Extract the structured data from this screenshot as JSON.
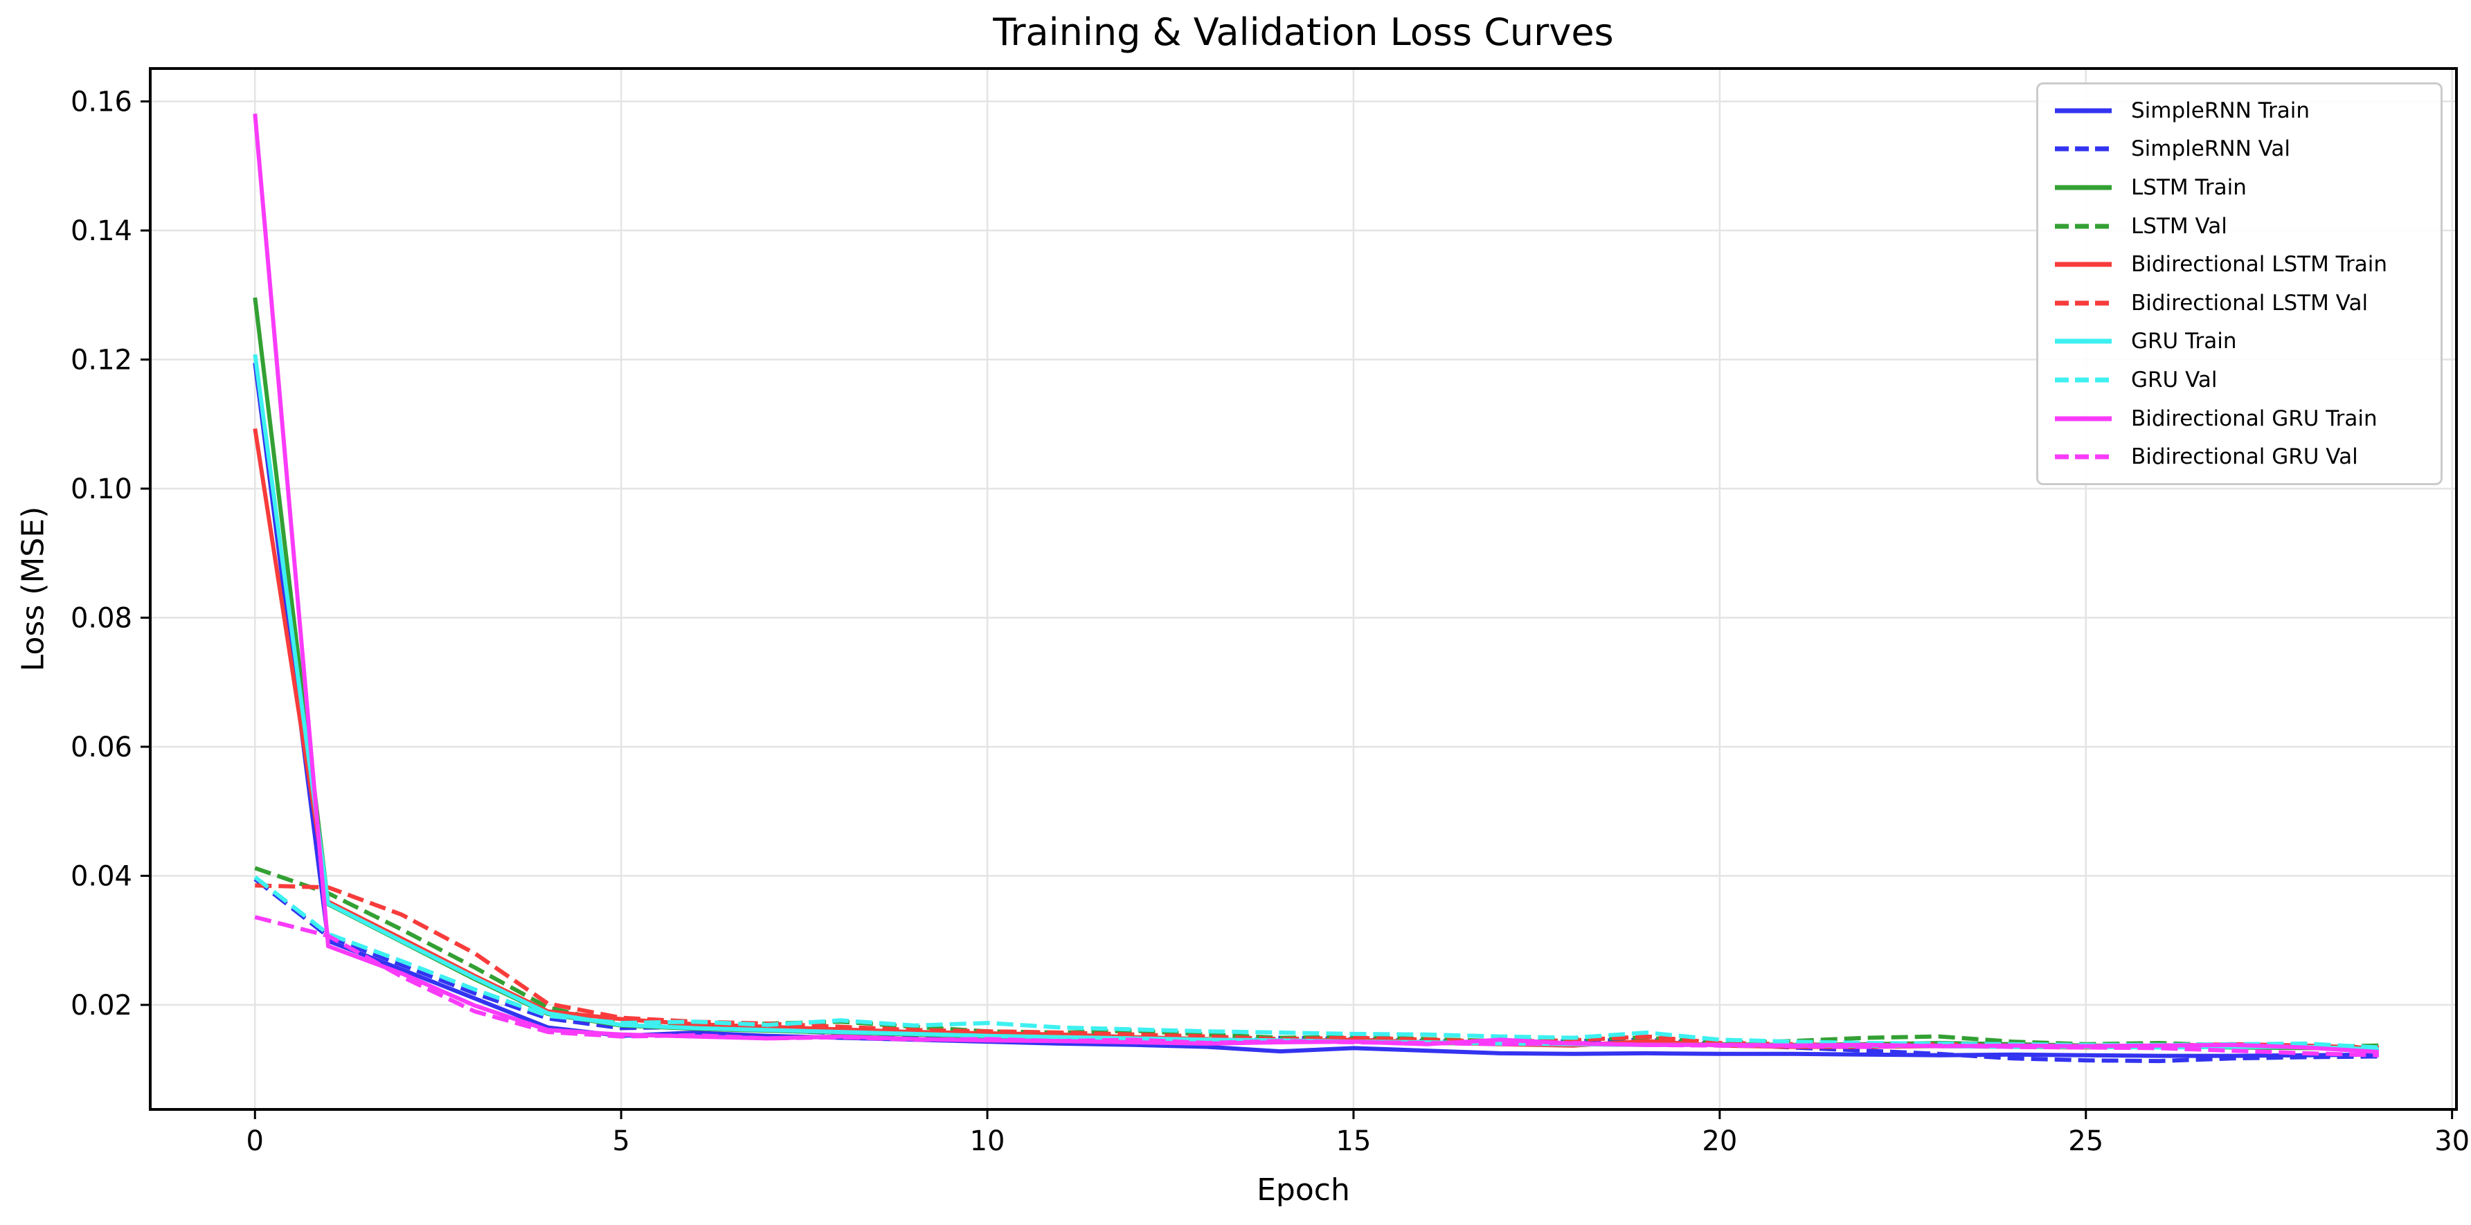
{
  "title": "Training & Validation Loss Curves",
  "axes": {
    "xlabel": "Epoch",
    "ylabel": "Loss (MSE)",
    "x_ticks": [
      0,
      5,
      10,
      15,
      20,
      25,
      30
    ],
    "y_ticks": [
      0.02,
      0.04,
      0.06,
      0.08,
      0.1,
      0.12,
      0.14,
      0.16
    ]
  },
  "colors": {
    "background": "#ffffff",
    "grid": "#e4e4e4",
    "spine": "#000000",
    "tick_text": "#000000",
    "legend_border": "#cbcbcb",
    "blue": "#3333f0",
    "green": "#33a033",
    "red": "#f83b3b",
    "cyan": "#3ef0f0",
    "magenta": "#f93bf9"
  },
  "chart_data": {
    "type": "line",
    "title": "Training & Validation Loss Curves",
    "xlabel": "Epoch",
    "ylabel": "Loss (MSE)",
    "xlim": [
      -1.43,
      30.06
    ],
    "ylim": [
      0.0038,
      0.1651
    ],
    "grid": true,
    "legend_position": "upper right",
    "x": [
      0,
      1,
      2,
      3,
      4,
      5,
      6,
      7,
      8,
      9,
      10,
      11,
      12,
      13,
      14,
      15,
      16,
      17,
      18,
      19,
      20,
      21,
      22,
      23,
      24,
      25,
      26,
      27,
      28,
      29
    ],
    "series": [
      {
        "name": "SimpleRNN Train",
        "color": "#3333f0",
        "style": "solid",
        "values": [
          0.1195,
          0.0299,
          0.0255,
          0.021,
          0.0165,
          0.0152,
          0.0157,
          0.0152,
          0.0149,
          0.0146,
          0.0143,
          0.014,
          0.0138,
          0.0135,
          0.0128,
          0.0133,
          0.0129,
          0.0125,
          0.0124,
          0.0125,
          0.0124,
          0.0124,
          0.0123,
          0.0122,
          0.0123,
          0.0122,
          0.0121,
          0.0121,
          0.0122,
          0.0123
        ]
      },
      {
        "name": "SimpleRNN Val",
        "color": "#3333f0",
        "style": "dashed",
        "values": [
          0.0395,
          0.0306,
          0.0262,
          0.0218,
          0.0179,
          0.0164,
          0.0166,
          0.0161,
          0.0156,
          0.0152,
          0.015,
          0.0148,
          0.0144,
          0.014,
          0.0149,
          0.0147,
          0.0144,
          0.0142,
          0.0144,
          0.0146,
          0.0139,
          0.0134,
          0.0129,
          0.0124,
          0.0117,
          0.0114,
          0.0113,
          0.0117,
          0.0119,
          0.012
        ]
      },
      {
        "name": "LSTM Train",
        "color": "#33a033",
        "style": "solid",
        "values": [
          0.1296,
          0.0356,
          0.0298,
          0.024,
          0.0186,
          0.0168,
          0.0163,
          0.016,
          0.0157,
          0.0154,
          0.0151,
          0.0149,
          0.0147,
          0.0146,
          0.0144,
          0.0143,
          0.0141,
          0.014,
          0.0139,
          0.0138,
          0.0139,
          0.0138,
          0.0139,
          0.0141,
          0.0139,
          0.0137,
          0.0136,
          0.0134,
          0.0133,
          0.0132
        ]
      },
      {
        "name": "LSTM Val",
        "color": "#33a033",
        "style": "dashed",
        "values": [
          0.0412,
          0.0373,
          0.0317,
          0.0258,
          0.0196,
          0.017,
          0.0168,
          0.0171,
          0.0174,
          0.0166,
          0.0159,
          0.0157,
          0.016,
          0.0154,
          0.0149,
          0.015,
          0.0147,
          0.0144,
          0.0147,
          0.0149,
          0.0141,
          0.0144,
          0.0149,
          0.0151,
          0.0143,
          0.0139,
          0.0141,
          0.0137,
          0.0135,
          0.0137
        ]
      },
      {
        "name": "Bidirectional LSTM Train",
        "color": "#f83b3b",
        "style": "solid",
        "values": [
          0.1093,
          0.036,
          0.0303,
          0.0245,
          0.019,
          0.0178,
          0.017,
          0.0166,
          0.0162,
          0.0158,
          0.0156,
          0.0154,
          0.015,
          0.0147,
          0.0144,
          0.0146,
          0.0142,
          0.0139,
          0.0137,
          0.0144,
          0.0137,
          0.0135,
          0.0135,
          0.0136,
          0.0135,
          0.0134,
          0.0136,
          0.0139,
          0.0137,
          0.0133
        ]
      },
      {
        "name": "Bidirectional LSTM Val",
        "color": "#f83b3b",
        "style": "dashed",
        "values": [
          0.0385,
          0.0382,
          0.034,
          0.028,
          0.0202,
          0.018,
          0.0174,
          0.0171,
          0.0166,
          0.0161,
          0.0159,
          0.0157,
          0.0154,
          0.0151,
          0.0147,
          0.0149,
          0.0146,
          0.0143,
          0.0145,
          0.0151,
          0.0141,
          0.0139,
          0.0137,
          0.0139,
          0.0137,
          0.0136,
          0.0137,
          0.0139,
          0.0136,
          0.0134
        ]
      },
      {
        "name": "GRU Train",
        "color": "#3ef0f0",
        "style": "solid",
        "values": [
          0.1208,
          0.0357,
          0.0299,
          0.0242,
          0.0187,
          0.0169,
          0.0164,
          0.0161,
          0.0158,
          0.0155,
          0.0152,
          0.015,
          0.0148,
          0.0146,
          0.0145,
          0.0143,
          0.0142,
          0.014,
          0.0139,
          0.0138,
          0.0138,
          0.0137,
          0.0137,
          0.0136,
          0.0135,
          0.0135,
          0.0134,
          0.0135,
          0.0135,
          0.0131
        ]
      },
      {
        "name": "GRU Val",
        "color": "#3ef0f0",
        "style": "dashed",
        "values": [
          0.0398,
          0.031,
          0.0268,
          0.0224,
          0.0183,
          0.0172,
          0.0174,
          0.0169,
          0.0176,
          0.0168,
          0.0172,
          0.0165,
          0.0162,
          0.0159,
          0.0157,
          0.0155,
          0.0154,
          0.0151,
          0.0149,
          0.0157,
          0.0146,
          0.0143,
          0.0141,
          0.014,
          0.0139,
          0.0138,
          0.0138,
          0.0139,
          0.014,
          0.0134
        ]
      },
      {
        "name": "Bidirectional GRU Train",
        "color": "#f93bf9",
        "style": "solid",
        "values": [
          0.1581,
          0.0291,
          0.0249,
          0.0199,
          0.0161,
          0.0154,
          0.0151,
          0.0148,
          0.0151,
          0.0147,
          0.0145,
          0.0144,
          0.0142,
          0.014,
          0.0142,
          0.0143,
          0.0139,
          0.0146,
          0.014,
          0.0138,
          0.0138,
          0.0137,
          0.0138,
          0.0136,
          0.0137,
          0.0136,
          0.0137,
          0.0138,
          0.0134,
          0.0127
        ]
      },
      {
        "name": "Bidirectional GRU Val",
        "color": "#f93bf9",
        "style": "dashed",
        "values": [
          0.0336,
          0.0307,
          0.0244,
          0.019,
          0.0158,
          0.0151,
          0.0153,
          0.0148,
          0.015,
          0.0146,
          0.0147,
          0.0144,
          0.0146,
          0.0141,
          0.0144,
          0.0142,
          0.0141,
          0.0139,
          0.0141,
          0.0138,
          0.0137,
          0.0136,
          0.0135,
          0.0137,
          0.0135,
          0.0134,
          0.0133,
          0.0129,
          0.0125,
          0.0122
        ]
      }
    ]
  }
}
